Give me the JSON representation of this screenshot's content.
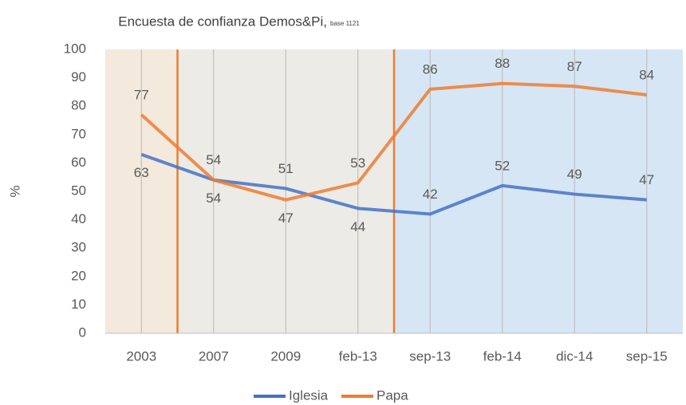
{
  "chart_data": {
    "type": "line",
    "title": "Encuesta de confianza Demos&Pi,",
    "subtitle": "base 1121",
    "y_label": "%",
    "categories": [
      "2003",
      "2007",
      "2009",
      "feb-13",
      "sep-13",
      "feb-14",
      "dic-14",
      "sep-15"
    ],
    "series": [
      {
        "name": "Iglesia",
        "color": "#4472c4",
        "values": [
          63,
          54,
          51,
          44,
          42,
          52,
          49,
          47
        ]
      },
      {
        "name": "Papa",
        "color": "#ed7d31",
        "values": [
          77,
          54,
          47,
          53,
          86,
          88,
          87,
          84
        ]
      }
    ],
    "ylim": [
      0,
      100
    ],
    "yticks": [
      0,
      10,
      20,
      30,
      40,
      50,
      60,
      70,
      80,
      90,
      100
    ],
    "grid": true,
    "legend": "bottom"
  }
}
